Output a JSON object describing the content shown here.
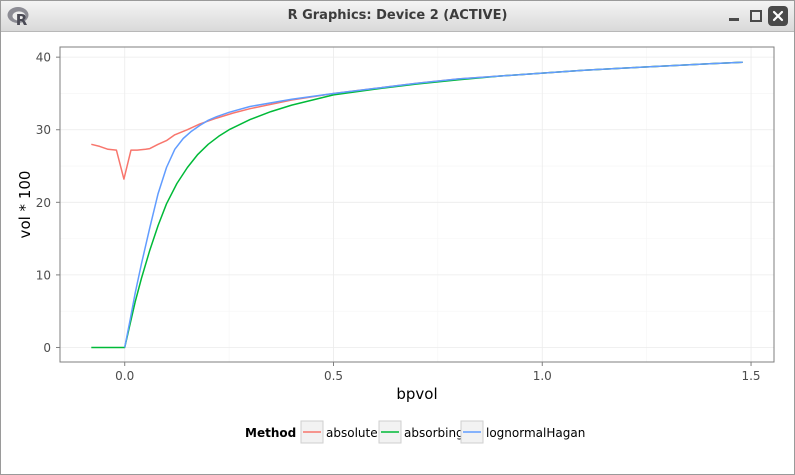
{
  "window": {
    "title": "R Graphics: Device 2 (ACTIVE)",
    "logo_letter": "R",
    "controls": [
      "minimize",
      "maximize",
      "close"
    ]
  },
  "chart_data": {
    "type": "line",
    "xlabel": "bpvol",
    "ylabel": "vol * 100",
    "xlim": [
      -0.155,
      1.555
    ],
    "ylim": [
      -2,
      41.4
    ],
    "x_ticks": [
      0.0,
      0.5,
      1.0,
      1.5
    ],
    "x_tick_labels": [
      "0.0",
      "0.5",
      "1.0",
      "1.5"
    ],
    "y_ticks": [
      0,
      10,
      20,
      30,
      40
    ],
    "y_tick_labels": [
      "0",
      "10",
      "20",
      "30",
      "40"
    ],
    "grid": true,
    "legend_position": "bottom",
    "legend_title": "Method",
    "series": [
      {
        "name": "absolute",
        "color": "#f8766d",
        "points": [
          [
            -0.08,
            28.0
          ],
          [
            -0.06,
            27.7
          ],
          [
            -0.04,
            27.3
          ],
          [
            -0.02,
            27.2
          ],
          [
            -0.002,
            23.2
          ],
          [
            0.015,
            27.2
          ],
          [
            0.03,
            27.2
          ],
          [
            0.05,
            27.3
          ],
          [
            0.06,
            27.4
          ],
          [
            0.08,
            28.0
          ],
          [
            0.1,
            28.5
          ],
          [
            0.12,
            29.3
          ],
          [
            0.15,
            30.0
          ],
          [
            0.18,
            30.8
          ],
          [
            0.22,
            31.6
          ],
          [
            0.26,
            32.3
          ],
          [
            0.3,
            32.9
          ],
          [
            0.4,
            34.1
          ],
          [
            0.5,
            35.0
          ],
          [
            0.6,
            35.7
          ],
          [
            0.7,
            36.4
          ],
          [
            0.8,
            37.0
          ],
          [
            0.9,
            37.4
          ],
          [
            1.0,
            37.8
          ],
          [
            1.1,
            38.2
          ],
          [
            1.2,
            38.5
          ],
          [
            1.3,
            38.8
          ],
          [
            1.4,
            39.1
          ],
          [
            1.48,
            39.3
          ]
        ]
      },
      {
        "name": "absorbing",
        "color": "#00ba38",
        "points": [
          [
            -0.08,
            0.0
          ],
          [
            0.0,
            0.0
          ],
          [
            0.012,
            3.0
          ],
          [
            0.025,
            6.3
          ],
          [
            0.04,
            9.5
          ],
          [
            0.06,
            13.4
          ],
          [
            0.08,
            16.8
          ],
          [
            0.1,
            19.8
          ],
          [
            0.125,
            22.6
          ],
          [
            0.15,
            24.8
          ],
          [
            0.175,
            26.6
          ],
          [
            0.2,
            28.0
          ],
          [
            0.225,
            29.1
          ],
          [
            0.25,
            30.0
          ],
          [
            0.3,
            31.4
          ],
          [
            0.35,
            32.5
          ],
          [
            0.4,
            33.4
          ],
          [
            0.5,
            34.8
          ],
          [
            0.6,
            35.6
          ],
          [
            0.7,
            36.3
          ],
          [
            0.8,
            36.9
          ],
          [
            0.9,
            37.4
          ],
          [
            1.0,
            37.8
          ],
          [
            1.1,
            38.2
          ],
          [
            1.2,
            38.5
          ],
          [
            1.3,
            38.8
          ],
          [
            1.4,
            39.1
          ],
          [
            1.48,
            39.3
          ]
        ]
      },
      {
        "name": "lognormalHagan",
        "color": "#619cff",
        "points": [
          [
            0.0,
            0.0
          ],
          [
            0.012,
            3.5
          ],
          [
            0.025,
            7.5
          ],
          [
            0.04,
            11.5
          ],
          [
            0.06,
            16.5
          ],
          [
            0.08,
            21.2
          ],
          [
            0.1,
            24.8
          ],
          [
            0.12,
            27.3
          ],
          [
            0.14,
            28.8
          ],
          [
            0.16,
            29.8
          ],
          [
            0.18,
            30.6
          ],
          [
            0.2,
            31.3
          ],
          [
            0.22,
            31.8
          ],
          [
            0.25,
            32.4
          ],
          [
            0.3,
            33.2
          ],
          [
            0.4,
            34.2
          ],
          [
            0.5,
            35.0
          ],
          [
            0.6,
            35.7
          ],
          [
            0.7,
            36.4
          ],
          [
            0.8,
            37.0
          ],
          [
            0.9,
            37.4
          ],
          [
            1.0,
            37.8
          ],
          [
            1.1,
            38.2
          ],
          [
            1.2,
            38.5
          ],
          [
            1.3,
            38.8
          ],
          [
            1.4,
            39.1
          ],
          [
            1.48,
            39.3
          ]
        ]
      }
    ]
  }
}
